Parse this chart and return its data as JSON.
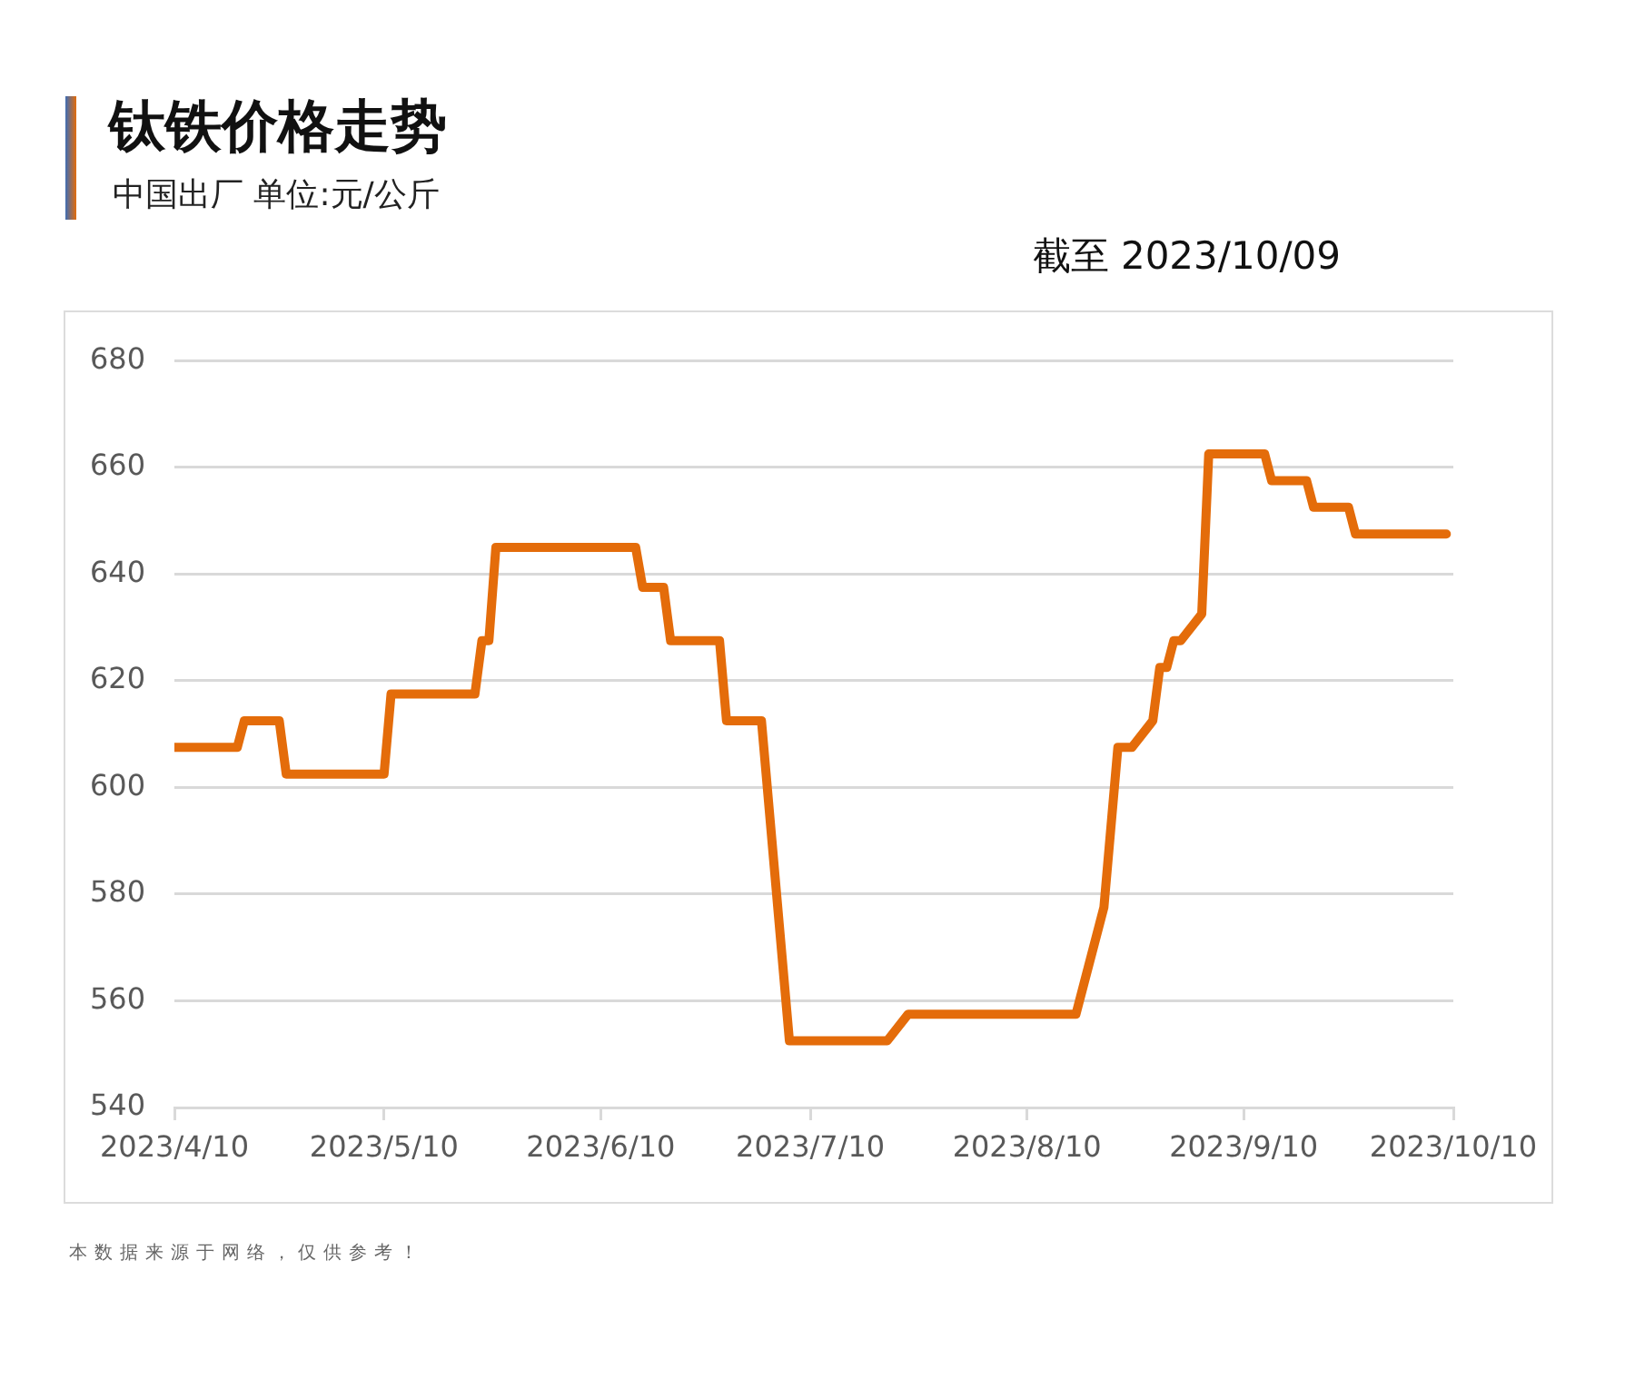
{
  "chart_data": {
    "type": "line",
    "title": "钛铁价格走势",
    "subtitle": "中国出厂 单位:元/公斤",
    "annotations": [
      "截至 2023/10/09",
      "本数据来源于网络，仅供参考！"
    ],
    "x": [
      "2023-04-10",
      "2023-04-19",
      "2023-04-20",
      "2023-04-25",
      "2023-04-26",
      "2023-05-10",
      "2023-05-11",
      "2023-05-23",
      "2023-05-24",
      "2023-05-25",
      "2023-05-26",
      "2023-06-15",
      "2023-06-16",
      "2023-06-19",
      "2023-06-20",
      "2023-06-27",
      "2023-06-28",
      "2023-07-03",
      "2023-07-07",
      "2023-07-21",
      "2023-07-24",
      "2023-08-17",
      "2023-08-21",
      "2023-08-23",
      "2023-08-25",
      "2023-08-28",
      "2023-08-29",
      "2023-08-30",
      "2023-08-31",
      "2023-09-01",
      "2023-09-04",
      "2023-09-05",
      "2023-09-13",
      "2023-09-14",
      "2023-09-19",
      "2023-09-20",
      "2023-09-25",
      "2023-09-26",
      "2023-10-09"
    ],
    "series": [
      {
        "color": "#e46c0a",
        "values": [
          607.5,
          607.5,
          612.5,
          612.5,
          602.5,
          602.5,
          617.5,
          617.5,
          627.5,
          627.5,
          645,
          645,
          637.5,
          637.5,
          627.5,
          627.5,
          612.5,
          612.5,
          552.5,
          552.5,
          557.5,
          557.5,
          577.5,
          607.5,
          607.5,
          612.5,
          622.5,
          622.5,
          627.5,
          627.5,
          632.5,
          662.5,
          662.5,
          657.5,
          657.5,
          652.5,
          652.5,
          647.5,
          647.5
        ]
      }
    ],
    "xlim": [
      "2023-04-10",
      "2023-10-10"
    ],
    "xticks": [
      {
        "value": "2023-04-10",
        "label": "2023/4/10"
      },
      {
        "value": "2023-05-10",
        "label": "2023/5/10"
      },
      {
        "value": "2023-06-10",
        "label": "2023/6/10"
      },
      {
        "value": "2023-07-10",
        "label": "2023/7/10"
      },
      {
        "value": "2023-08-10",
        "label": "2023/8/10"
      },
      {
        "value": "2023-09-10",
        "label": "2023/9/10"
      },
      {
        "value": "2023-10-10",
        "label": "2023/10/10"
      }
    ],
    "ylim": [
      540,
      680
    ],
    "yticks": [
      540,
      560,
      580,
      600,
      620,
      640,
      660,
      680
    ],
    "grid": "y",
    "line_style": "solid"
  }
}
